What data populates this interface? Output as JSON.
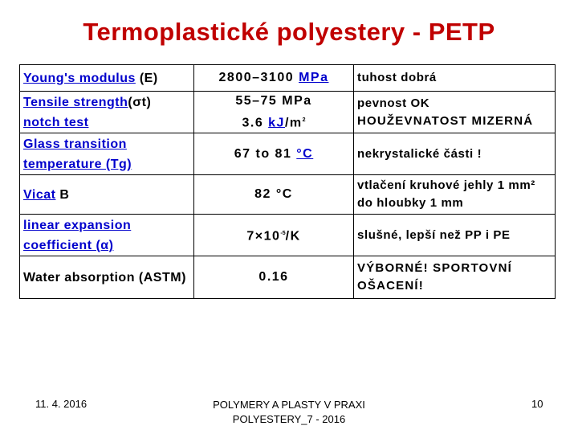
{
  "title": "Termoplastické polyestery - PETP",
  "table": {
    "rows": [
      {
        "name": {
          "link": "Young's modulus",
          "rest": " (E)"
        },
        "value": {
          "pre": "2800–3100 ",
          "link": "MPa"
        },
        "note": "tuhost dobrá"
      },
      {
        "name": {
          "link": "Tensile strength",
          "rest": "(σt)"
        },
        "value": {
          "text": "55–75 MPa"
        },
        "note": "pevnost OK"
      },
      {
        "name": {
          "link": "notch test"
        },
        "value": {
          "pre": "3.6 ",
          "link": "kJ",
          "post": "/m",
          "sup": "2"
        },
        "note": "HOUŽEVNATOST MIZERNÁ"
      },
      {
        "name": {
          "link": "Glass transition temperature (Tg)"
        },
        "value": {
          "pre": "67 to 81 ",
          "link": "°C"
        },
        "note": "nekrystalické části !"
      },
      {
        "name": {
          "link": "Vicat",
          "rest": " B"
        },
        "value": {
          "text": "82 °C"
        },
        "note": "vtlačení kruhové jehly 1 mm² do hloubky 1 mm"
      },
      {
        "name": {
          "link": "linear expansion coefficient (α)"
        },
        "value": {
          "pre": "7×10",
          "sup": "-5",
          "post": "/K"
        },
        "note": "slušné, lepší než PP i PE"
      },
      {
        "name": {
          "text": "Water absorption (ASTM)"
        },
        "value": {
          "text": "0.16"
        },
        "note": "VÝBORNÉ! SPORTOVNÍ OŠACENÍ!"
      }
    ]
  },
  "footer": {
    "date": "11. 4. 2016",
    "center_line1": "POLYMERY A PLASTY V PRAXI",
    "center_line2": "POLYESTERY_7 - 2016",
    "page": "10"
  },
  "colors": {
    "title": "#c00000",
    "link": "#0000cc"
  }
}
